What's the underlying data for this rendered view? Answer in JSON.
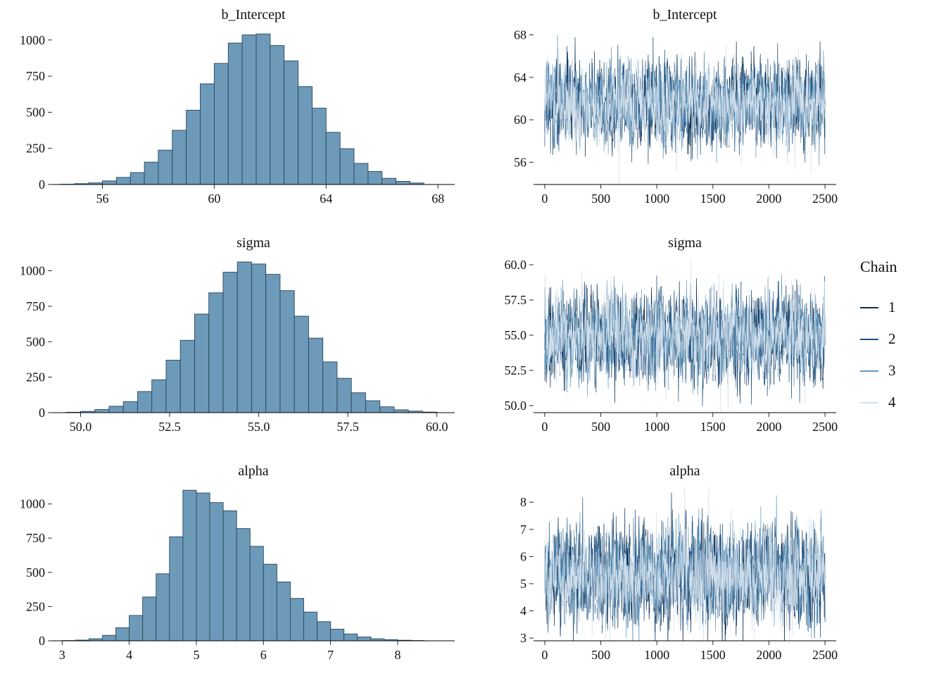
{
  "style": {
    "hist_fill": "#6d9ab8",
    "hist_stroke": "#27465f",
    "axis_color": "#000000",
    "tick_color": "#2b2b2b"
  },
  "legend": {
    "title": "Chain",
    "entries": [
      {
        "label": "1",
        "color": "#0d2e52"
      },
      {
        "label": "2",
        "color": "#1d5080"
      },
      {
        "label": "3",
        "color": "#6699bb"
      },
      {
        "label": "4",
        "color": "#d3e0ec"
      }
    ]
  },
  "chart_data": [
    {
      "type": "bar",
      "kind": "histogram",
      "title": "b_Intercept",
      "x": {
        "lim": [
          54.2,
          68.6
        ],
        "ticks": [
          56,
          60,
          64,
          68
        ],
        "labels": [
          "56",
          "60",
          "64",
          "68"
        ]
      },
      "y": {
        "lim": [
          0,
          1072
        ],
        "ticks": [
          0,
          250,
          500,
          750,
          1000
        ],
        "labels": [
          "0",
          "250",
          "500",
          "750",
          "1000"
        ]
      },
      "bin_width": 0.5,
      "bin_centers": [
        54.75,
        55.25,
        55.75,
        56.25,
        56.75,
        57.25,
        57.75,
        58.25,
        58.75,
        59.25,
        59.75,
        60.25,
        60.75,
        61.25,
        61.75,
        62.25,
        62.75,
        63.25,
        63.75,
        64.25,
        64.75,
        65.25,
        65.75,
        66.25,
        66.75,
        67.25
      ],
      "counts": [
        2,
        6,
        11,
        25,
        49,
        83,
        155,
        238,
        375,
        514,
        697,
        838,
        979,
        1035,
        1042,
        962,
        855,
        678,
        528,
        361,
        248,
        146,
        90,
        43,
        22,
        10
      ]
    },
    {
      "type": "line",
      "kind": "trace",
      "title": "b_Intercept",
      "x": {
        "lim": [
          -100,
          2600
        ],
        "ticks": [
          0,
          500,
          1000,
          1500,
          2000,
          2500
        ],
        "labels": [
          "0",
          "500",
          "1000",
          "1500",
          "2000",
          "2500"
        ]
      },
      "y": {
        "lim": [
          53.9,
          68.5
        ],
        "ticks": [
          56,
          60,
          64,
          68
        ],
        "labels": [
          "56",
          "60",
          "64",
          "68"
        ]
      },
      "iterations": 2500,
      "points_per_chain": 1250,
      "chains": [
        {
          "id": 1,
          "mean": 61.5,
          "sd": 1.9
        },
        {
          "id": 2,
          "mean": 61.5,
          "sd": 1.9
        },
        {
          "id": 3,
          "mean": 61.5,
          "sd": 1.9
        },
        {
          "id": 4,
          "mean": 61.5,
          "sd": 1.9
        }
      ]
    },
    {
      "type": "bar",
      "kind": "histogram",
      "title": "sigma",
      "x": {
        "lim": [
          49.2,
          60.5
        ],
        "ticks": [
          50,
          52.5,
          55,
          57.5,
          60
        ],
        "labels": [
          "50.0",
          "52.5",
          "55.0",
          "57.5",
          "60.0"
        ]
      },
      "y": {
        "lim": [
          0,
          1092
        ],
        "ticks": [
          0,
          250,
          500,
          750,
          1000
        ],
        "labels": [
          "0",
          "250",
          "500",
          "750",
          "1000"
        ]
      },
      "bin_width": 0.4,
      "bin_centers": [
        49.8,
        50.2,
        50.6,
        51.0,
        51.4,
        51.8,
        52.2,
        52.6,
        53.0,
        53.4,
        53.8,
        54.2,
        54.6,
        55.0,
        55.4,
        55.8,
        56.2,
        56.6,
        57.0,
        57.4,
        57.8,
        58.2,
        58.6,
        59.0,
        59.4,
        59.8
      ],
      "counts": [
        3,
        9,
        22,
        45,
        78,
        149,
        232,
        370,
        510,
        695,
        845,
        990,
        1062,
        1048,
        975,
        860,
        680,
        525,
        358,
        242,
        140,
        84,
        41,
        20,
        11,
        4
      ]
    },
    {
      "type": "line",
      "kind": "trace",
      "title": "sigma",
      "x": {
        "lim": [
          -100,
          2600
        ],
        "ticks": [
          0,
          500,
          1000,
          1500,
          2000,
          2500
        ],
        "labels": [
          "0",
          "500",
          "1000",
          "1500",
          "2000",
          "2500"
        ]
      },
      "y": {
        "lim": [
          49.5,
          60.5
        ],
        "ticks": [
          50,
          52.5,
          55,
          57.5,
          60
        ],
        "labels": [
          "50.0",
          "52.5",
          "55.0",
          "57.5",
          "60.0"
        ]
      },
      "iterations": 2500,
      "points_per_chain": 1250,
      "chains": [
        {
          "id": 1,
          "mean": 54.8,
          "sd": 1.5
        },
        {
          "id": 2,
          "mean": 54.8,
          "sd": 1.5
        },
        {
          "id": 3,
          "mean": 54.8,
          "sd": 1.5
        },
        {
          "id": 4,
          "mean": 54.8,
          "sd": 1.5
        }
      ]
    },
    {
      "type": "bar",
      "kind": "histogram",
      "title": "alpha",
      "x": {
        "lim": [
          2.85,
          8.85
        ],
        "ticks": [
          3,
          4,
          5,
          6,
          7,
          8
        ],
        "labels": [
          "3",
          "4",
          "5",
          "6",
          "7",
          "8"
        ]
      },
      "y": {
        "lim": [
          0,
          1132
        ],
        "ticks": [
          0,
          250,
          500,
          750,
          1000
        ],
        "labels": [
          "0",
          "250",
          "500",
          "750",
          "1000"
        ]
      },
      "bin_width": 0.2,
      "bin_centers": [
        3.1,
        3.3,
        3.5,
        3.7,
        3.9,
        4.1,
        4.3,
        4.5,
        4.7,
        4.9,
        5.1,
        5.3,
        5.5,
        5.7,
        5.9,
        6.1,
        6.3,
        6.5,
        6.7,
        6.9,
        7.1,
        7.3,
        7.5,
        7.7,
        7.9,
        8.1,
        8.3
      ],
      "counts": [
        2,
        5,
        15,
        40,
        95,
        185,
        320,
        490,
        760,
        1100,
        1080,
        1010,
        950,
        820,
        690,
        560,
        430,
        310,
        210,
        140,
        85,
        50,
        28,
        15,
        8,
        4,
        2
      ]
    },
    {
      "type": "line",
      "kind": "trace",
      "title": "alpha",
      "x": {
        "lim": [
          -100,
          2600
        ],
        "ticks": [
          0,
          500,
          1000,
          1500,
          2000,
          2500
        ],
        "labels": [
          "0",
          "500",
          "1000",
          "1500",
          "2000",
          "2500"
        ]
      },
      "y": {
        "lim": [
          2.9,
          8.6
        ],
        "ticks": [
          3,
          4,
          5,
          6,
          7,
          8
        ],
        "labels": [
          "3",
          "4",
          "5",
          "6",
          "7",
          "8"
        ]
      },
      "iterations": 2500,
      "points_per_chain": 1250,
      "chains": [
        {
          "id": 1,
          "mean": 5.3,
          "sd": 0.85
        },
        {
          "id": 2,
          "mean": 5.3,
          "sd": 0.85
        },
        {
          "id": 3,
          "mean": 5.3,
          "sd": 0.85
        },
        {
          "id": 4,
          "mean": 5.3,
          "sd": 0.85
        }
      ]
    }
  ]
}
